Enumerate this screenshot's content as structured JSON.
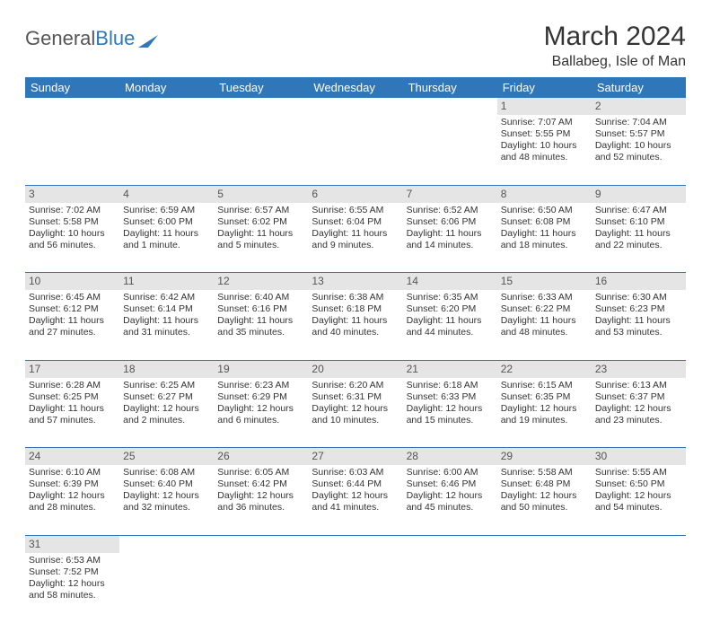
{
  "brand": {
    "general": "General",
    "blue": "Blue"
  },
  "title": "March 2024",
  "location": "Ballabeg, Isle of Man",
  "colors": {
    "header_bg": "#2f77b8",
    "header_text": "#ffffff",
    "daynum_bg": "#e5e5e5",
    "text": "#333333",
    "rule": "#2f77b8"
  },
  "day_headers": [
    "Sunday",
    "Monday",
    "Tuesday",
    "Wednesday",
    "Thursday",
    "Friday",
    "Saturday"
  ],
  "weeks": [
    [
      null,
      null,
      null,
      null,
      null,
      {
        "n": "1",
        "sr": "Sunrise: 7:07 AM",
        "ss": "Sunset: 5:55 PM",
        "d1": "Daylight: 10 hours",
        "d2": "and 48 minutes."
      },
      {
        "n": "2",
        "sr": "Sunrise: 7:04 AM",
        "ss": "Sunset: 5:57 PM",
        "d1": "Daylight: 10 hours",
        "d2": "and 52 minutes."
      }
    ],
    [
      {
        "n": "3",
        "sr": "Sunrise: 7:02 AM",
        "ss": "Sunset: 5:58 PM",
        "d1": "Daylight: 10 hours",
        "d2": "and 56 minutes."
      },
      {
        "n": "4",
        "sr": "Sunrise: 6:59 AM",
        "ss": "Sunset: 6:00 PM",
        "d1": "Daylight: 11 hours",
        "d2": "and 1 minute."
      },
      {
        "n": "5",
        "sr": "Sunrise: 6:57 AM",
        "ss": "Sunset: 6:02 PM",
        "d1": "Daylight: 11 hours",
        "d2": "and 5 minutes."
      },
      {
        "n": "6",
        "sr": "Sunrise: 6:55 AM",
        "ss": "Sunset: 6:04 PM",
        "d1": "Daylight: 11 hours",
        "d2": "and 9 minutes."
      },
      {
        "n": "7",
        "sr": "Sunrise: 6:52 AM",
        "ss": "Sunset: 6:06 PM",
        "d1": "Daylight: 11 hours",
        "d2": "and 14 minutes."
      },
      {
        "n": "8",
        "sr": "Sunrise: 6:50 AM",
        "ss": "Sunset: 6:08 PM",
        "d1": "Daylight: 11 hours",
        "d2": "and 18 minutes."
      },
      {
        "n": "9",
        "sr": "Sunrise: 6:47 AM",
        "ss": "Sunset: 6:10 PM",
        "d1": "Daylight: 11 hours",
        "d2": "and 22 minutes."
      }
    ],
    [
      {
        "n": "10",
        "sr": "Sunrise: 6:45 AM",
        "ss": "Sunset: 6:12 PM",
        "d1": "Daylight: 11 hours",
        "d2": "and 27 minutes."
      },
      {
        "n": "11",
        "sr": "Sunrise: 6:42 AM",
        "ss": "Sunset: 6:14 PM",
        "d1": "Daylight: 11 hours",
        "d2": "and 31 minutes."
      },
      {
        "n": "12",
        "sr": "Sunrise: 6:40 AM",
        "ss": "Sunset: 6:16 PM",
        "d1": "Daylight: 11 hours",
        "d2": "and 35 minutes."
      },
      {
        "n": "13",
        "sr": "Sunrise: 6:38 AM",
        "ss": "Sunset: 6:18 PM",
        "d1": "Daylight: 11 hours",
        "d2": "and 40 minutes."
      },
      {
        "n": "14",
        "sr": "Sunrise: 6:35 AM",
        "ss": "Sunset: 6:20 PM",
        "d1": "Daylight: 11 hours",
        "d2": "and 44 minutes."
      },
      {
        "n": "15",
        "sr": "Sunrise: 6:33 AM",
        "ss": "Sunset: 6:22 PM",
        "d1": "Daylight: 11 hours",
        "d2": "and 48 minutes."
      },
      {
        "n": "16",
        "sr": "Sunrise: 6:30 AM",
        "ss": "Sunset: 6:23 PM",
        "d1": "Daylight: 11 hours",
        "d2": "and 53 minutes."
      }
    ],
    [
      {
        "n": "17",
        "sr": "Sunrise: 6:28 AM",
        "ss": "Sunset: 6:25 PM",
        "d1": "Daylight: 11 hours",
        "d2": "and 57 minutes."
      },
      {
        "n": "18",
        "sr": "Sunrise: 6:25 AM",
        "ss": "Sunset: 6:27 PM",
        "d1": "Daylight: 12 hours",
        "d2": "and 2 minutes."
      },
      {
        "n": "19",
        "sr": "Sunrise: 6:23 AM",
        "ss": "Sunset: 6:29 PM",
        "d1": "Daylight: 12 hours",
        "d2": "and 6 minutes."
      },
      {
        "n": "20",
        "sr": "Sunrise: 6:20 AM",
        "ss": "Sunset: 6:31 PM",
        "d1": "Daylight: 12 hours",
        "d2": "and 10 minutes."
      },
      {
        "n": "21",
        "sr": "Sunrise: 6:18 AM",
        "ss": "Sunset: 6:33 PM",
        "d1": "Daylight: 12 hours",
        "d2": "and 15 minutes."
      },
      {
        "n": "22",
        "sr": "Sunrise: 6:15 AM",
        "ss": "Sunset: 6:35 PM",
        "d1": "Daylight: 12 hours",
        "d2": "and 19 minutes."
      },
      {
        "n": "23",
        "sr": "Sunrise: 6:13 AM",
        "ss": "Sunset: 6:37 PM",
        "d1": "Daylight: 12 hours",
        "d2": "and 23 minutes."
      }
    ],
    [
      {
        "n": "24",
        "sr": "Sunrise: 6:10 AM",
        "ss": "Sunset: 6:39 PM",
        "d1": "Daylight: 12 hours",
        "d2": "and 28 minutes."
      },
      {
        "n": "25",
        "sr": "Sunrise: 6:08 AM",
        "ss": "Sunset: 6:40 PM",
        "d1": "Daylight: 12 hours",
        "d2": "and 32 minutes."
      },
      {
        "n": "26",
        "sr": "Sunrise: 6:05 AM",
        "ss": "Sunset: 6:42 PM",
        "d1": "Daylight: 12 hours",
        "d2": "and 36 minutes."
      },
      {
        "n": "27",
        "sr": "Sunrise: 6:03 AM",
        "ss": "Sunset: 6:44 PM",
        "d1": "Daylight: 12 hours",
        "d2": "and 41 minutes."
      },
      {
        "n": "28",
        "sr": "Sunrise: 6:00 AM",
        "ss": "Sunset: 6:46 PM",
        "d1": "Daylight: 12 hours",
        "d2": "and 45 minutes."
      },
      {
        "n": "29",
        "sr": "Sunrise: 5:58 AM",
        "ss": "Sunset: 6:48 PM",
        "d1": "Daylight: 12 hours",
        "d2": "and 50 minutes."
      },
      {
        "n": "30",
        "sr": "Sunrise: 5:55 AM",
        "ss": "Sunset: 6:50 PM",
        "d1": "Daylight: 12 hours",
        "d2": "and 54 minutes."
      }
    ],
    [
      {
        "n": "31",
        "sr": "Sunrise: 6:53 AM",
        "ss": "Sunset: 7:52 PM",
        "d1": "Daylight: 12 hours",
        "d2": "and 58 minutes."
      },
      null,
      null,
      null,
      null,
      null,
      null
    ]
  ]
}
